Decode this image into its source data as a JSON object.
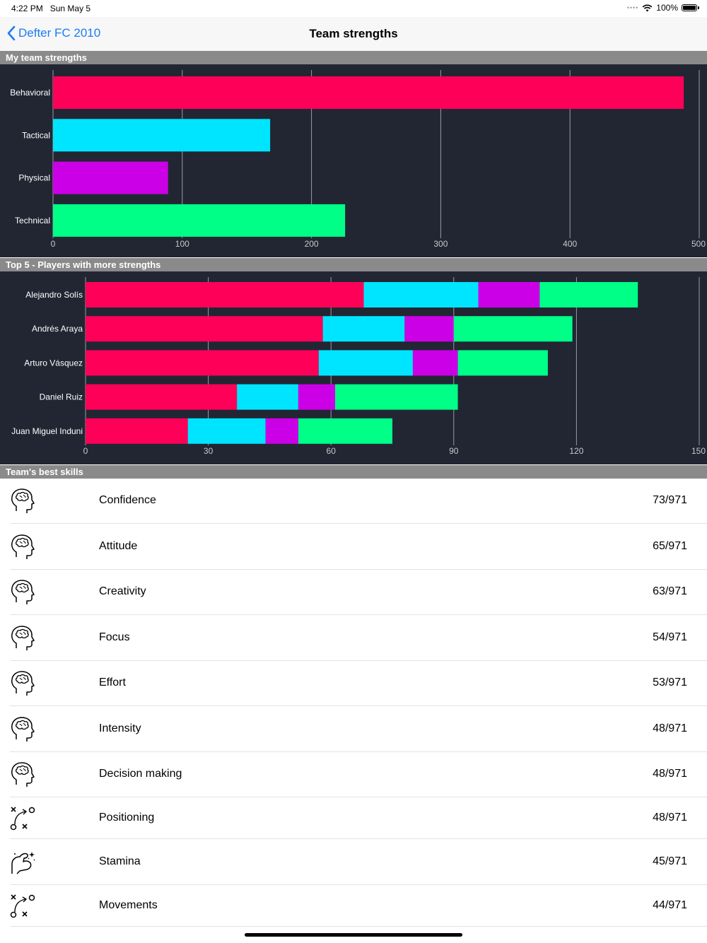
{
  "status": {
    "time": "4:22 PM",
    "date": "Sun May 5",
    "battery": "100%",
    "battery_level": 1.0
  },
  "nav": {
    "back_label": "Defter FC 2010",
    "title": "Team strengths"
  },
  "colors": {
    "behavioral": "#ff0059",
    "tactical": "#00e5ff",
    "physical": "#cc00e6",
    "technical": "#00ff87"
  },
  "sections": {
    "my_team": "My team strengths",
    "top5": "Top 5 - Players with more strengths",
    "best_skills": "Team's best skills"
  },
  "chart_data": [
    {
      "type": "bar",
      "orientation": "horizontal",
      "categories": [
        "Behavioral",
        "Tactical",
        "Physical",
        "Technical"
      ],
      "values": [
        488,
        168,
        89,
        226
      ],
      "xlim": [
        0,
        500
      ],
      "xticks": [
        "0",
        "100",
        "200",
        "300",
        "400",
        "500"
      ],
      "grid": true
    },
    {
      "type": "bar",
      "orientation": "horizontal",
      "stacked": true,
      "categories": [
        "Alejandro Solís",
        "Andrés Araya",
        "Arturo Vásquez",
        "Daniel Ruiz",
        "Juan Miguel Induni"
      ],
      "series": [
        {
          "values": [
            68,
            58,
            57,
            37,
            25
          ]
        },
        {
          "values": [
            28,
            20,
            23,
            15,
            19
          ]
        },
        {
          "values": [
            15,
            12,
            11,
            9,
            8
          ]
        },
        {
          "values": [
            24,
            29,
            22,
            30,
            23
          ]
        }
      ],
      "xlim": [
        0,
        150
      ],
      "xticks": [
        "0",
        "30",
        "60",
        "90",
        "120",
        "150"
      ],
      "grid": true
    }
  ],
  "skills": [
    {
      "name": "Confidence",
      "value": "73/971",
      "icon": "brain-head-icon"
    },
    {
      "name": "Attitude",
      "value": "65/971",
      "icon": "brain-head-icon"
    },
    {
      "name": "Creativity",
      "value": "63/971",
      "icon": "brain-head-icon"
    },
    {
      "name": "Focus",
      "value": "54/971",
      "icon": "brain-head-icon"
    },
    {
      "name": "Effort",
      "value": "53/971",
      "icon": "brain-head-icon"
    },
    {
      "name": "Intensity",
      "value": "48/971",
      "icon": "brain-head-icon"
    },
    {
      "name": "Decision making",
      "value": "48/971",
      "icon": "brain-head-icon"
    },
    {
      "name": "Positioning",
      "value": "48/971",
      "icon": "tactics-board-icon"
    },
    {
      "name": "Stamina",
      "value": "45/971",
      "icon": "flexed-arm-icon"
    },
    {
      "name": "Movements",
      "value": "44/971",
      "icon": "tactics-board-icon"
    }
  ]
}
